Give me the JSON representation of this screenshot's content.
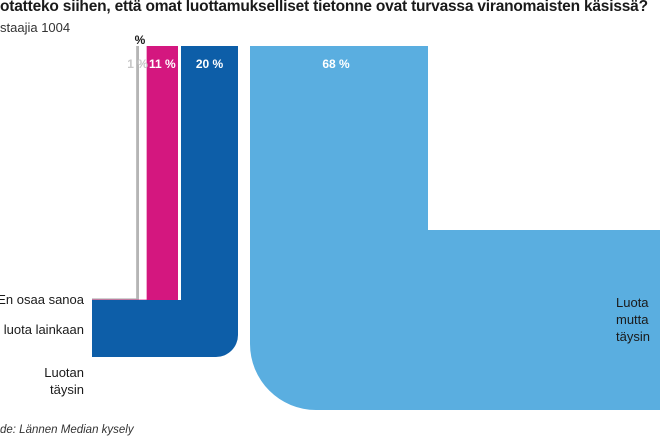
{
  "title": "otatteko siihen, että omat luottamukselliset tietonne ovat turvassa viranomaisten käsissä?",
  "subtitle": "staajia 1004",
  "source": "de: Lännen Median kysely",
  "unit_header": "%",
  "chart_data": {
    "type": "bar",
    "title": "otatteko siihen, että omat luottamukselliset tietonne ovat turvassa viranomaisten käsissä?",
    "categories": [
      "En osaa sanoa",
      "luota lainkaan",
      "Luotan täysin",
      "Luotan mutta täysin"
    ],
    "category_lines": [
      [
        "En osaa sanoa"
      ],
      [
        "luota lainkaan"
      ],
      [
        "Luotan",
        "täysin"
      ],
      [
        "Luota",
        "mutta",
        "täysin"
      ]
    ],
    "values": [
      1,
      11,
      20,
      68
    ],
    "value_labels": [
      "1 %",
      "11 %",
      "20 %",
      "68 %"
    ],
    "colors": [
      "#b5b5b5",
      "#d4177f",
      "#0d5ea8",
      "#5aaee0"
    ],
    "value_label_colors": [
      "#c8c8c8",
      "#ffffff",
      "#ffffff",
      "#ffffff"
    ],
    "ylim": [
      0,
      100
    ]
  }
}
